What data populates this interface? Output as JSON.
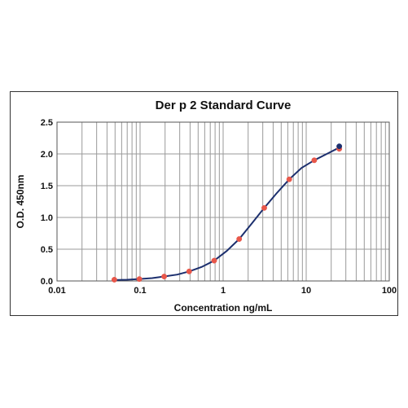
{
  "chart_data": {
    "type": "scatter",
    "title": "Der p 2 Standard Curve",
    "xlabel": "Concentration ng/mL",
    "ylabel": "O.D. 450nm",
    "x_scale": "log",
    "xlim": [
      0.01,
      100
    ],
    "ylim": [
      0,
      2.5
    ],
    "x_ticks": [
      "0.01",
      "0.1",
      "1",
      "10",
      "100"
    ],
    "y_ticks": [
      "0.0",
      "0.5",
      "1.0",
      "1.5",
      "2.0",
      "2.5"
    ],
    "grid": true,
    "series": [
      {
        "kind": "points",
        "color": "#e8574a",
        "x": [
          0.049,
          0.098,
          0.195,
          0.39,
          0.78,
          1.56,
          3.125,
          6.25,
          12.5,
          25
        ],
        "y": [
          0.02,
          0.03,
          0.07,
          0.15,
          0.32,
          0.66,
          1.15,
          1.6,
          1.9,
          2.08
        ]
      },
      {
        "kind": "points",
        "color": "#1c2f6e",
        "x": [
          25
        ],
        "y": [
          2.12
        ]
      },
      {
        "kind": "fitted-curve",
        "color": "#1c2f6e",
        "x": [
          0.049,
          0.07,
          0.098,
          0.14,
          0.195,
          0.28,
          0.39,
          0.55,
          0.78,
          1.1,
          1.56,
          2.2,
          3.125,
          4.4,
          6.25,
          8.8,
          12.5,
          17.7,
          25
        ],
        "y": [
          0.015,
          0.02,
          0.03,
          0.045,
          0.07,
          0.1,
          0.15,
          0.22,
          0.32,
          0.47,
          0.66,
          0.9,
          1.15,
          1.38,
          1.6,
          1.78,
          1.9,
          2.0,
          2.1
        ]
      }
    ]
  }
}
